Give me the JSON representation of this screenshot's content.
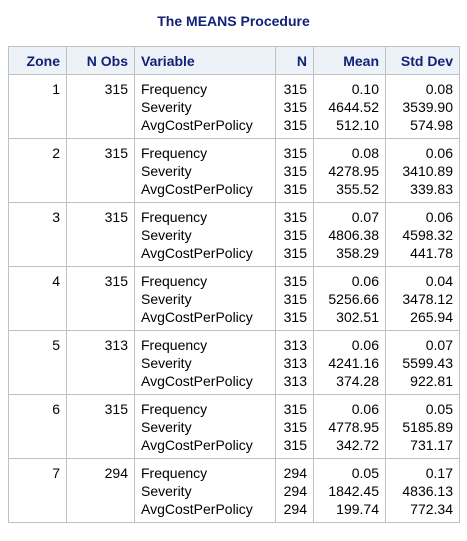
{
  "title": "The MEANS Procedure",
  "columns": [
    "Zone",
    "N Obs",
    "Variable",
    "N",
    "Mean",
    "Std Dev"
  ],
  "rows": [
    {
      "zone": "1",
      "nobs": "315",
      "variables": [
        "Frequency",
        "Severity",
        "AvgCostPerPolicy"
      ],
      "n": [
        "315",
        "315",
        "315"
      ],
      "mean": [
        "0.10",
        "4644.52",
        "512.10"
      ],
      "std": [
        "0.08",
        "3539.90",
        "574.98"
      ]
    },
    {
      "zone": "2",
      "nobs": "315",
      "variables": [
        "Frequency",
        "Severity",
        "AvgCostPerPolicy"
      ],
      "n": [
        "315",
        "315",
        "315"
      ],
      "mean": [
        "0.08",
        "4278.95",
        "355.52"
      ],
      "std": [
        "0.06",
        "3410.89",
        "339.83"
      ]
    },
    {
      "zone": "3",
      "nobs": "315",
      "variables": [
        "Frequency",
        "Severity",
        "AvgCostPerPolicy"
      ],
      "n": [
        "315",
        "315",
        "315"
      ],
      "mean": [
        "0.07",
        "4806.38",
        "358.29"
      ],
      "std": [
        "0.06",
        "4598.32",
        "441.78"
      ]
    },
    {
      "zone": "4",
      "nobs": "315",
      "variables": [
        "Frequency",
        "Severity",
        "AvgCostPerPolicy"
      ],
      "n": [
        "315",
        "315",
        "315"
      ],
      "mean": [
        "0.06",
        "5256.66",
        "302.51"
      ],
      "std": [
        "0.04",
        "3478.12",
        "265.94"
      ]
    },
    {
      "zone": "5",
      "nobs": "313",
      "variables": [
        "Frequency",
        "Severity",
        "AvgCostPerPolicy"
      ],
      "n": [
        "313",
        "313",
        "313"
      ],
      "mean": [
        "0.06",
        "4241.16",
        "374.28"
      ],
      "std": [
        "0.07",
        "5599.43",
        "922.81"
      ]
    },
    {
      "zone": "6",
      "nobs": "315",
      "variables": [
        "Frequency",
        "Severity",
        "AvgCostPerPolicy"
      ],
      "n": [
        "315",
        "315",
        "315"
      ],
      "mean": [
        "0.06",
        "4778.95",
        "342.72"
      ],
      "std": [
        "0.05",
        "5185.89",
        "731.17"
      ]
    },
    {
      "zone": "7",
      "nobs": "294",
      "variables": [
        "Frequency",
        "Severity",
        "AvgCostPerPolicy"
      ],
      "n": [
        "294",
        "294",
        "294"
      ],
      "mean": [
        "0.05",
        "1842.45",
        "199.74"
      ],
      "std": [
        "0.17",
        "4836.13",
        "772.34"
      ]
    }
  ]
}
